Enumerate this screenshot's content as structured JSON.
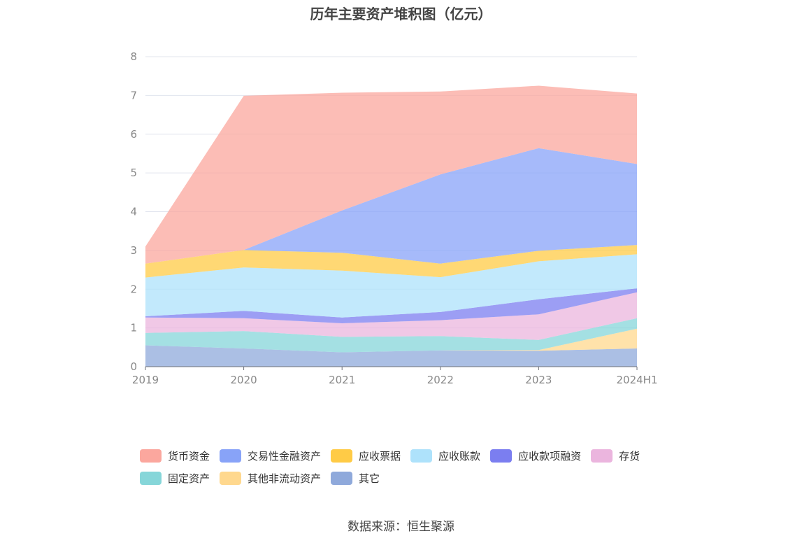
{
  "chart_data": {
    "type": "area",
    "stacked": true,
    "title": "历年主要资产堆积图（亿元）",
    "x": [
      "2019",
      "2020",
      "2021",
      "2022",
      "2023",
      "2024H1"
    ],
    "ylim": [
      0,
      8
    ],
    "yticks": [
      "0",
      "1",
      "2",
      "3",
      "4",
      "5",
      "6",
      "7",
      "8"
    ],
    "grid": true,
    "legend_position": "bottom",
    "series": [
      {
        "name": "其它",
        "color": "#8fa9db",
        "values": [
          0.55,
          0.47,
          0.37,
          0.42,
          0.41,
          0.47
        ]
      },
      {
        "name": "其他非流动资产",
        "color": "#ffd88e",
        "values": [
          0.0,
          0.0,
          0.0,
          0.0,
          0.02,
          0.51
        ]
      },
      {
        "name": "固定资产",
        "color": "#86d6d9",
        "values": [
          0.32,
          0.45,
          0.4,
          0.37,
          0.26,
          0.27
        ]
      },
      {
        "name": "存货",
        "color": "#ebb5de",
        "values": [
          0.4,
          0.33,
          0.35,
          0.41,
          0.66,
          0.67
        ]
      },
      {
        "name": "应收款项融资",
        "color": "#7b7ef0",
        "values": [
          0.03,
          0.19,
          0.15,
          0.21,
          0.39,
          0.1
        ]
      },
      {
        "name": "应收账款",
        "color": "#aee2fb",
        "values": [
          1.0,
          1.12,
          1.21,
          0.9,
          0.98,
          0.88
        ]
      },
      {
        "name": "应收票据",
        "color": "#ffcb46",
        "values": [
          0.36,
          0.45,
          0.46,
          0.35,
          0.27,
          0.24
        ]
      },
      {
        "name": "交易性金融资产",
        "color": "#88a3f8",
        "values": [
          0.0,
          0.0,
          1.09,
          2.3,
          2.65,
          2.09
        ]
      },
      {
        "name": "货币资金",
        "color": "#fba79e",
        "values": [
          0.44,
          3.98,
          3.04,
          2.14,
          1.61,
          1.82
        ]
      }
    ]
  },
  "legend_order": [
    "货币资金",
    "交易性金融资产",
    "应收票据",
    "应收账款",
    "应收款项融资",
    "存货",
    "固定资产",
    "其他非流动资产",
    "其它"
  ],
  "source_text": "数据来源：恒生聚源"
}
